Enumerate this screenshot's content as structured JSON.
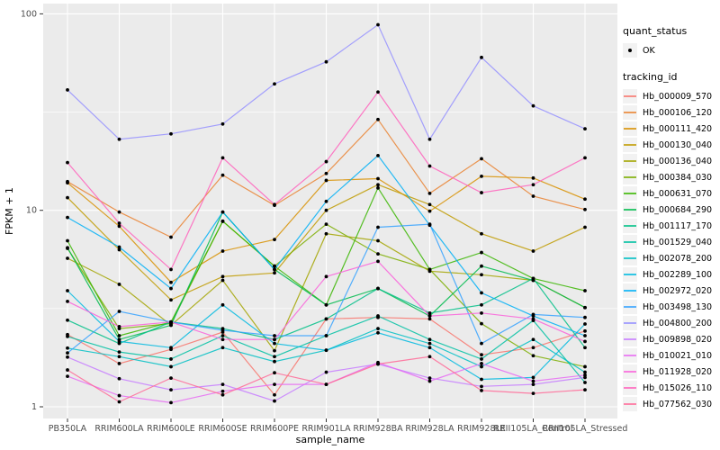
{
  "figure": {
    "y_axis_title": "FPKM + 1",
    "x_axis_title": "sample_name",
    "y_tick_labels": [
      "1",
      "10",
      "100"
    ],
    "panel_background": "#EBEBEB",
    "grid_color": "#FFFFFF",
    "tick_text_color": "#4D4D4D",
    "point_color": "#000000"
  },
  "legend": {
    "quant_status_title": "quant_status",
    "quant_status_items": [
      {
        "label": "OK",
        "marker": "black-point"
      }
    ],
    "tracking_id_title": "tracking_id"
  },
  "chart_data": {
    "type": "line",
    "title": "",
    "xlabel": "sample_name",
    "ylabel": "FPKM + 1",
    "y_scale": "log10",
    "ylim": [
      1,
      100
    ],
    "y_major_ticks": [
      1,
      10,
      100
    ],
    "y_minor_ticks": [
      3.1623,
      31.623
    ],
    "grid": true,
    "legend_position": "right",
    "marker": "black dot on every point (quant_status = OK)",
    "categories": [
      "PB350LA",
      "RRIM600LA",
      "RRIM600LE",
      "RRIM600SE",
      "RRIM600PE",
      "RRIM901LA",
      "RRIM928BA",
      "RRIM928LA",
      "RRIM928LE",
      "RRII105LA_Control",
      "RRII105LA_Stressed"
    ],
    "series": [
      {
        "name": "Hb_000009_570",
        "color": "#F8766D",
        "values": [
          2.33,
          1.66,
          1.96,
          2.4,
          1.15,
          2.8,
          2.85,
          2.8,
          1.84,
          2.0,
          2.43
        ]
      },
      {
        "name": "Hb_000106_120",
        "color": "#EA8331",
        "values": [
          14.0,
          9.8,
          7.3,
          15.1,
          10.6,
          15.4,
          29.0,
          12.2,
          18.3,
          11.8,
          10.1
        ]
      },
      {
        "name": "Hb_000111_420",
        "color": "#D89000",
        "values": [
          13.8,
          8.3,
          4.3,
          6.2,
          7.1,
          14.2,
          14.5,
          9.9,
          14.9,
          14.6,
          11.4
        ]
      },
      {
        "name": "Hb_000130_040",
        "color": "#C09B00",
        "values": [
          11.6,
          6.3,
          3.5,
          4.6,
          4.8,
          10.0,
          13.5,
          10.7,
          7.6,
          6.2,
          8.2
        ]
      },
      {
        "name": "Hb_000136_040",
        "color": "#A3A500",
        "values": [
          5.7,
          4.2,
          2.6,
          4.4,
          1.93,
          7.6,
          7.0,
          4.9,
          4.7,
          4.4,
          3.2
        ]
      },
      {
        "name": "Hb_000384_030",
        "color": "#7CAE00",
        "values": [
          6.4,
          2.5,
          2.65,
          8.8,
          5.2,
          8.5,
          6.0,
          5.0,
          2.65,
          1.82,
          1.6
        ]
      },
      {
        "name": "Hb_000631_070",
        "color": "#39B600",
        "values": [
          7.0,
          2.3,
          2.7,
          8.8,
          5.2,
          3.3,
          13.0,
          5.0,
          6.1,
          4.5,
          3.9
        ]
      },
      {
        "name": "Hb_000684_290",
        "color": "#00BB4E",
        "values": [
          6.45,
          2.2,
          2.6,
          9.8,
          5.0,
          3.3,
          4.0,
          2.9,
          5.2,
          4.4,
          3.2
        ]
      },
      {
        "name": "Hb_001117_170",
        "color": "#00C087",
        "values": [
          2.76,
          2.1,
          2.7,
          2.5,
          2.2,
          2.8,
          4.0,
          3.0,
          3.3,
          4.5,
          2.0
        ]
      },
      {
        "name": "Hb_001529_040",
        "color": "#00C1A3",
        "values": [
          2.28,
          1.9,
          1.75,
          2.3,
          1.8,
          2.3,
          2.9,
          2.2,
          1.75,
          2.75,
          1.33
        ]
      },
      {
        "name": "Hb_002078_200",
        "color": "#00BFC4",
        "values": [
          1.99,
          1.8,
          1.6,
          2.0,
          1.7,
          1.94,
          2.5,
          2.1,
          1.6,
          2.2,
          1.5
        ]
      },
      {
        "name": "Hb_002289_100",
        "color": "#00BAE0",
        "values": [
          3.9,
          2.15,
          2.0,
          3.3,
          2.1,
          1.94,
          2.38,
          2.0,
          1.38,
          1.41,
          2.64
        ]
      },
      {
        "name": "Hb_002972_020",
        "color": "#00B0F6",
        "values": [
          9.2,
          6.5,
          4.0,
          9.8,
          5.0,
          11.1,
          19.0,
          8.4,
          3.8,
          2.9,
          2.3
        ]
      },
      {
        "name": "Hb_003498_130",
        "color": "#35A2FF",
        "values": [
          1.88,
          3.06,
          2.7,
          2.45,
          2.3,
          2.3,
          8.2,
          8.5,
          2.1,
          2.95,
          2.85
        ]
      },
      {
        "name": "Hb_004800_200",
        "color": "#9590FF",
        "values": [
          41.0,
          23.0,
          24.5,
          27.5,
          44.0,
          57.0,
          88.0,
          23.0,
          60.0,
          34.0,
          26.0
        ]
      },
      {
        "name": "Hb_009898_020",
        "color": "#C77CFF",
        "values": [
          1.79,
          1.39,
          1.22,
          1.3,
          1.07,
          1.5,
          1.65,
          1.4,
          1.27,
          1.3,
          1.41
        ]
      },
      {
        "name": "Hb_010021_010",
        "color": "#E76BF3",
        "values": [
          1.43,
          1.14,
          1.05,
          1.2,
          1.3,
          1.3,
          1.68,
          1.35,
          1.66,
          1.35,
          1.45
        ]
      },
      {
        "name": "Hb_011928_020",
        "color": "#FA62DB",
        "values": [
          3.44,
          2.56,
          2.7,
          2.2,
          2.2,
          4.6,
          5.5,
          2.9,
          3.0,
          2.8,
          2.15
        ]
      },
      {
        "name": "Hb_015026_110",
        "color": "#FF62BC",
        "values": [
          17.5,
          8.6,
          5.0,
          18.5,
          10.7,
          17.7,
          40.0,
          16.8,
          12.3,
          13.5,
          18.5
        ]
      },
      {
        "name": "Hb_077562_030",
        "color": "#FF6A98",
        "values": [
          1.54,
          1.06,
          1.4,
          1.15,
          1.49,
          1.3,
          1.65,
          1.8,
          1.21,
          1.17,
          1.22
        ]
      }
    ]
  }
}
